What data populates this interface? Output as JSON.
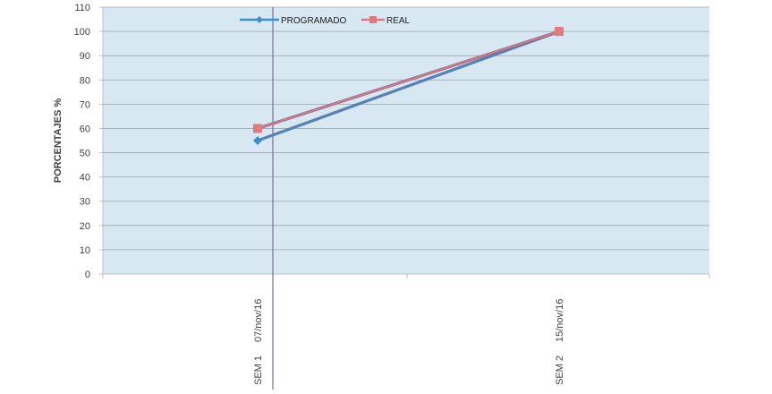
{
  "chart_data": {
    "type": "line",
    "categories": [
      {
        "line1": "SEM 1",
        "line2": "07/nov/16"
      },
      {
        "line1": "SEM 2",
        "line2": "15/nov/16"
      }
    ],
    "series": [
      {
        "name": "PROGRAMADO",
        "values": [
          55,
          100
        ],
        "color": "#3d8fc7",
        "marker": "diamond"
      },
      {
        "name": "REAL",
        "values": [
          60,
          100
        ],
        "color": "#e07a7f",
        "marker": "square"
      }
    ],
    "ylabel": "PORCENTAJES %",
    "ylim": [
      0,
      110
    ],
    "yticks": [
      0,
      10,
      20,
      30,
      40,
      50,
      60,
      70,
      80,
      90,
      100,
      110
    ],
    "grid": true,
    "legend_position": "top",
    "plot_background": "#d7e8f3",
    "gridline_color": "#9aa6b0",
    "axis_text_color": "#404040"
  }
}
